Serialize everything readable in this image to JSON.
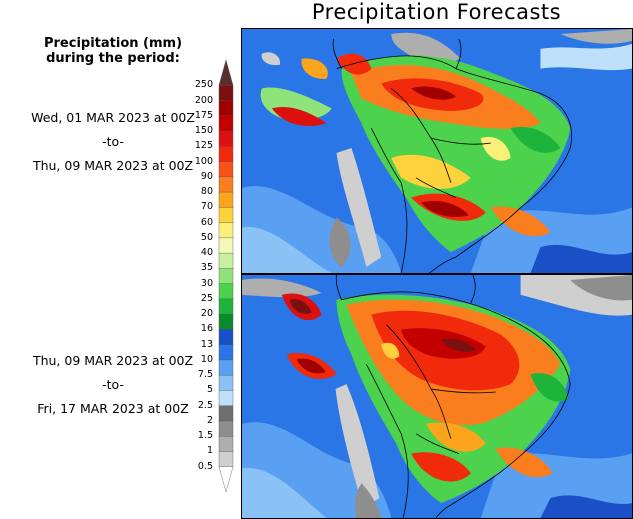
{
  "title": "Precipitation Forecasts",
  "legend": {
    "heading_line1": "Precipitation (mm)",
    "heading_line2": "during the period:",
    "ticks": [
      "250",
      "200",
      "175",
      "150",
      "125",
      "100",
      "90",
      "80",
      "70",
      "60",
      "50",
      "40",
      "35",
      "30",
      "25",
      "20",
      "16",
      "13",
      "10",
      "7.5",
      "5",
      "2.5",
      "2",
      "1.5",
      "1",
      "0.5"
    ],
    "bands": [
      {
        "color": "#5a2f2f"
      },
      {
        "color": "#7a1010"
      },
      {
        "color": "#a00000"
      },
      {
        "color": "#c20000"
      },
      {
        "color": "#dd1010"
      },
      {
        "color": "#f02a0a"
      },
      {
        "color": "#f8521a"
      },
      {
        "color": "#fb7e1e"
      },
      {
        "color": "#fba41c"
      },
      {
        "color": "#fdd23a"
      },
      {
        "color": "#fbf07a"
      },
      {
        "color": "#f2f8b8"
      },
      {
        "color": "#c8f0a0"
      },
      {
        "color": "#8ee47a"
      },
      {
        "color": "#4cd24c"
      },
      {
        "color": "#1eb43c"
      },
      {
        "color": "#0a8a2e"
      },
      {
        "color": "#1a4fc8"
      },
      {
        "color": "#2a76e6"
      },
      {
        "color": "#5aa0f2"
      },
      {
        "color": "#8ac2f6"
      },
      {
        "color": "#bfe0fa"
      },
      {
        "color": "#6e6e6e"
      },
      {
        "color": "#8e8e8e"
      },
      {
        "color": "#aeaeae"
      },
      {
        "color": "#cfcfcf"
      },
      {
        "color": "#ffffff"
      }
    ]
  },
  "periods": [
    {
      "start": "Wed, 01 MAR 2023 at 00Z",
      "sep": "-to-",
      "end": "Thu, 09 MAR 2023 at 00Z"
    },
    {
      "start": "Thu, 09 MAR 2023 at 00Z",
      "sep": "-to-",
      "end": "Fri, 17 MAR 2023 at 00Z"
    }
  ]
}
